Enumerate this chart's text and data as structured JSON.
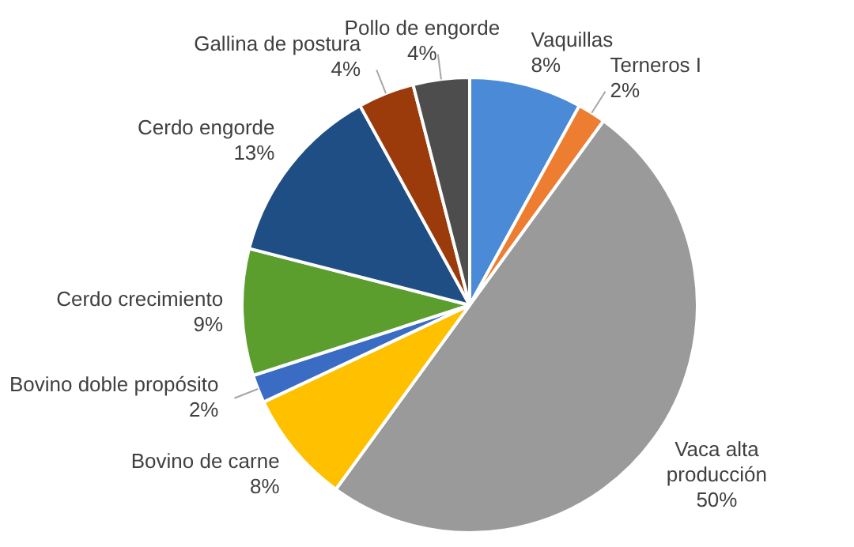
{
  "chart_data": {
    "type": "pie",
    "categories": [
      "Vaquillas",
      "Terneros I",
      "Vaca alta producción",
      "Bovino de carne",
      "Bovino doble propósito",
      "Cerdo crecimiento",
      "Cerdo engorde",
      "Gallina de postura",
      "Pollo de engorde"
    ],
    "values": [
      8,
      2,
      50,
      8,
      2,
      9,
      13,
      4,
      4
    ],
    "value_labels": [
      "8%",
      "2%",
      "50%",
      "8%",
      "2%",
      "9%",
      "13%",
      "4%",
      "4%"
    ],
    "colors": [
      "#4a8ad6",
      "#ed7d31",
      "#9a9a9a",
      "#ffc000",
      "#3a6cc4",
      "#5b9e2e",
      "#1f4e85",
      "#9b3a0a",
      "#4d4d4d"
    ],
    "legend": false
  }
}
